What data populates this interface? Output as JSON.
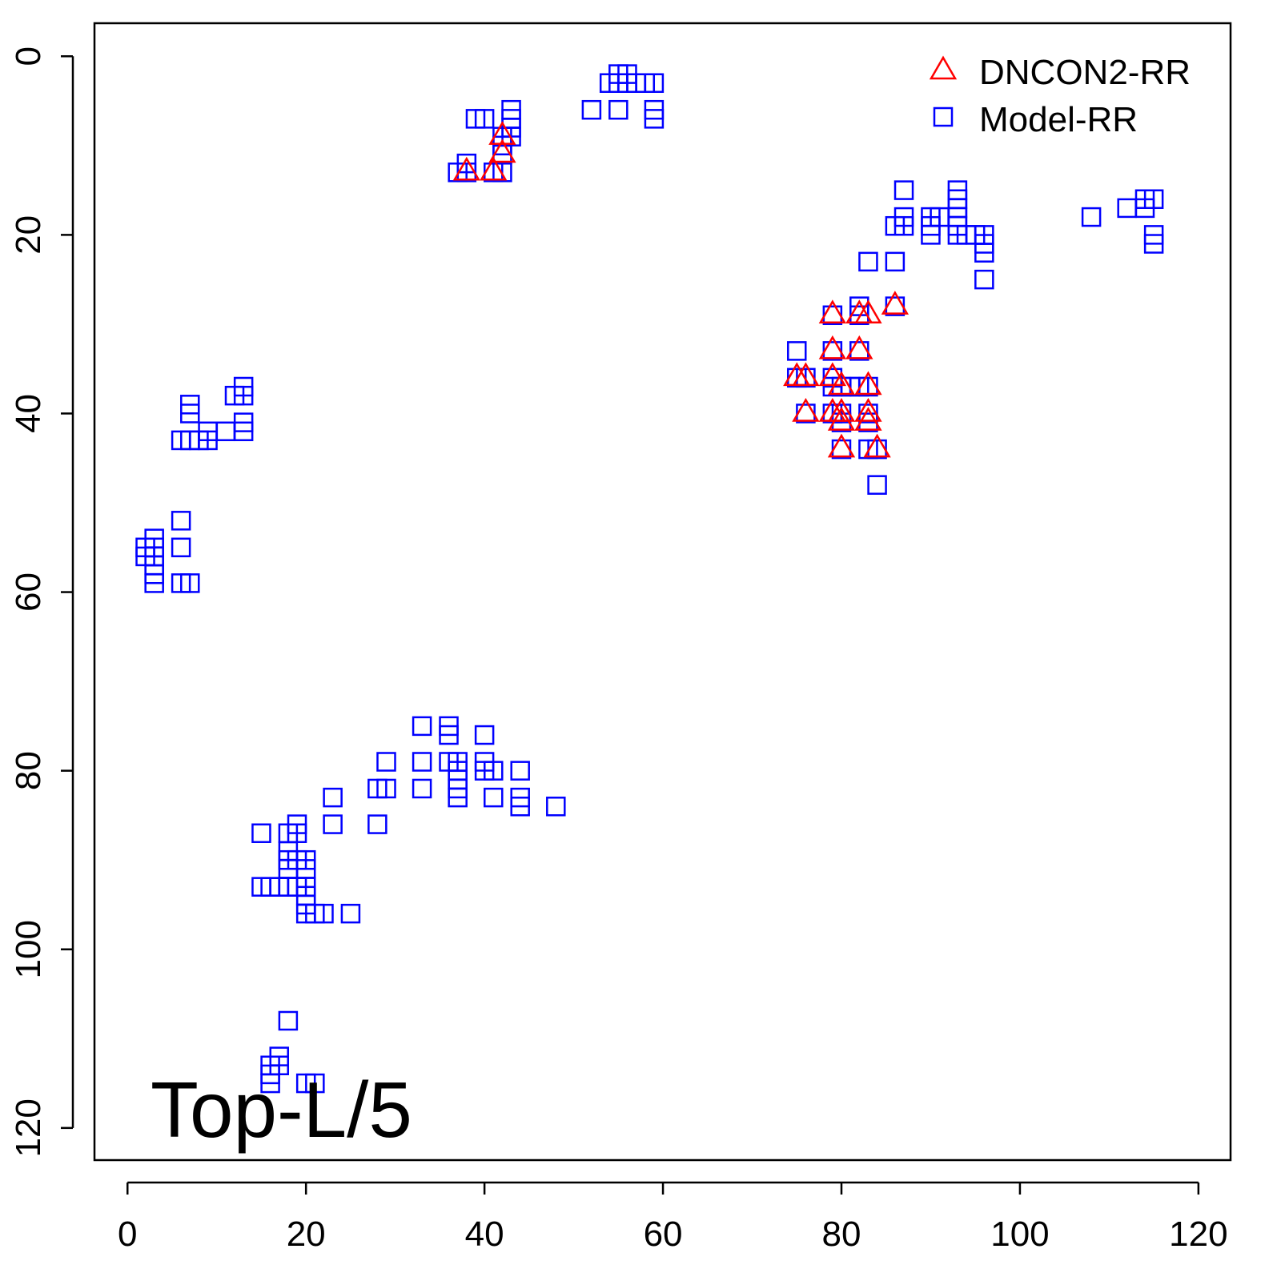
{
  "chart_data": {
    "type": "scatter",
    "title": "",
    "annotation": "Top-L/5",
    "xlabel": "",
    "ylabel": "",
    "xlim": [
      -3.7,
      123.6
    ],
    "ylim": [
      -3.7,
      123.6
    ],
    "y_reversed": true,
    "grid": false,
    "legend_position": "top-right",
    "x_ticks": [
      0,
      20,
      40,
      60,
      80,
      100,
      120
    ],
    "y_ticks": [
      0,
      20,
      40,
      60,
      80,
      100,
      120
    ],
    "x_tick_labels": [
      "0",
      "20",
      "40",
      "60",
      "80",
      "100",
      "120"
    ],
    "y_tick_labels": [
      "0",
      "20",
      "40",
      "60",
      "80",
      "100",
      "120"
    ],
    "series": [
      {
        "name": "Model-RR",
        "marker": "square",
        "color": "#0000ff",
        "points": [
          [
            39,
            7
          ],
          [
            40,
            7
          ],
          [
            43,
            6
          ],
          [
            43,
            7
          ],
          [
            43,
            8
          ],
          [
            42,
            9
          ],
          [
            43,
            9
          ],
          [
            42,
            10
          ],
          [
            42,
            11
          ],
          [
            38,
            12
          ],
          [
            37,
            13
          ],
          [
            38,
            13
          ],
          [
            41,
            13
          ],
          [
            42,
            13
          ],
          [
            55,
            2
          ],
          [
            56,
            2
          ],
          [
            54,
            3
          ],
          [
            55,
            3
          ],
          [
            56,
            3
          ],
          [
            57,
            3
          ],
          [
            58,
            3
          ],
          [
            59,
            3
          ],
          [
            52,
            6
          ],
          [
            55,
            6
          ],
          [
            59,
            6
          ],
          [
            59,
            7
          ],
          [
            87,
            15
          ],
          [
            93,
            15
          ],
          [
            93,
            16
          ],
          [
            93,
            17
          ],
          [
            86,
            19
          ],
          [
            87,
            18
          ],
          [
            87,
            19
          ],
          [
            90,
            18
          ],
          [
            91,
            18
          ],
          [
            90,
            19
          ],
          [
            90,
            20
          ],
          [
            93,
            18
          ],
          [
            93,
            19
          ],
          [
            93,
            20
          ],
          [
            94,
            20
          ],
          [
            95,
            20
          ],
          [
            96,
            20
          ],
          [
            96,
            21
          ],
          [
            96,
            22
          ],
          [
            83,
            23
          ],
          [
            86,
            23
          ],
          [
            96,
            25
          ],
          [
            108,
            18
          ],
          [
            112,
            17
          ],
          [
            114,
            16
          ],
          [
            115,
            16
          ],
          [
            114,
            17
          ],
          [
            115,
            20
          ],
          [
            115,
            21
          ],
          [
            86,
            28
          ],
          [
            82,
            28
          ],
          [
            79,
            29
          ],
          [
            82,
            29
          ],
          [
            75,
            33
          ],
          [
            79,
            33
          ],
          [
            82,
            33
          ],
          [
            75,
            36
          ],
          [
            76,
            36
          ],
          [
            79,
            36
          ],
          [
            79,
            37
          ],
          [
            80,
            37
          ],
          [
            81,
            37
          ],
          [
            82,
            37
          ],
          [
            83,
            37
          ],
          [
            76,
            40
          ],
          [
            79,
            40
          ],
          [
            80,
            40
          ],
          [
            80,
            41
          ],
          [
            83,
            40
          ],
          [
            83,
            41
          ],
          [
            80,
            44
          ],
          [
            83,
            44
          ],
          [
            84,
            44
          ],
          [
            84,
            48
          ],
          [
            13,
            37
          ],
          [
            13,
            38
          ],
          [
            12,
            38
          ],
          [
            7,
            39
          ],
          [
            7,
            40
          ],
          [
            13,
            41
          ],
          [
            13,
            42
          ],
          [
            11,
            42
          ],
          [
            9,
            42
          ],
          [
            9,
            43
          ],
          [
            8,
            43
          ],
          [
            7,
            43
          ],
          [
            6,
            43
          ],
          [
            6,
            52
          ],
          [
            3,
            54
          ],
          [
            2,
            55
          ],
          [
            3,
            55
          ],
          [
            6,
            55
          ],
          [
            2,
            56
          ],
          [
            3,
            56
          ],
          [
            3,
            57
          ],
          [
            3,
            58
          ],
          [
            3,
            59
          ],
          [
            6,
            59
          ],
          [
            7,
            59
          ],
          [
            33,
            75
          ],
          [
            36,
            75
          ],
          [
            36,
            76
          ],
          [
            40,
            76
          ],
          [
            29,
            79
          ],
          [
            33,
            79
          ],
          [
            36,
            79
          ],
          [
            37,
            79
          ],
          [
            40,
            79
          ],
          [
            37,
            80
          ],
          [
            40,
            80
          ],
          [
            41,
            80
          ],
          [
            44,
            80
          ],
          [
            37,
            81
          ],
          [
            28,
            82
          ],
          [
            29,
            82
          ],
          [
            33,
            82
          ],
          [
            37,
            82
          ],
          [
            37,
            83
          ],
          [
            41,
            83
          ],
          [
            44,
            83
          ],
          [
            23,
            83
          ],
          [
            44,
            84
          ],
          [
            48,
            84
          ],
          [
            23,
            86
          ],
          [
            28,
            86
          ],
          [
            15,
            87
          ],
          [
            18,
            87
          ],
          [
            19,
            86
          ],
          [
            19,
            87
          ],
          [
            18,
            89
          ],
          [
            18,
            90
          ],
          [
            19,
            90
          ],
          [
            20,
            90
          ],
          [
            18,
            91
          ],
          [
            20,
            91
          ],
          [
            15,
            93
          ],
          [
            16,
            93
          ],
          [
            17,
            93
          ],
          [
            18,
            93
          ],
          [
            19,
            93
          ],
          [
            20,
            93
          ],
          [
            20,
            94
          ],
          [
            20,
            95
          ],
          [
            20,
            96
          ],
          [
            21,
            96
          ],
          [
            22,
            96
          ],
          [
            25,
            96
          ],
          [
            18,
            108
          ],
          [
            17,
            112
          ],
          [
            16,
            113
          ],
          [
            17,
            113
          ],
          [
            16,
            114
          ],
          [
            16,
            115
          ],
          [
            20,
            115
          ],
          [
            21,
            115
          ]
        ]
      },
      {
        "name": "DNCON2-RR",
        "marker": "triangle",
        "color": "#ff0000",
        "points": [
          [
            42,
            9
          ],
          [
            42,
            11
          ],
          [
            38,
            13
          ],
          [
            41,
            13
          ],
          [
            86,
            28
          ],
          [
            79,
            29
          ],
          [
            82,
            29
          ],
          [
            83,
            29
          ],
          [
            79,
            33
          ],
          [
            82,
            33
          ],
          [
            75,
            36
          ],
          [
            76,
            36
          ],
          [
            79,
            36
          ],
          [
            80,
            37
          ],
          [
            83,
            37
          ],
          [
            76,
            40
          ],
          [
            79,
            40
          ],
          [
            80,
            40
          ],
          [
            80,
            41
          ],
          [
            83,
            40
          ],
          [
            83,
            41
          ],
          [
            80,
            44
          ],
          [
            84,
            44
          ]
        ]
      }
    ],
    "legend": [
      {
        "label": "DNCON2-RR",
        "marker": "triangle",
        "color": "#ff0000"
      },
      {
        "label": "Model-RR",
        "marker": "square",
        "color": "#0000ff"
      }
    ]
  }
}
